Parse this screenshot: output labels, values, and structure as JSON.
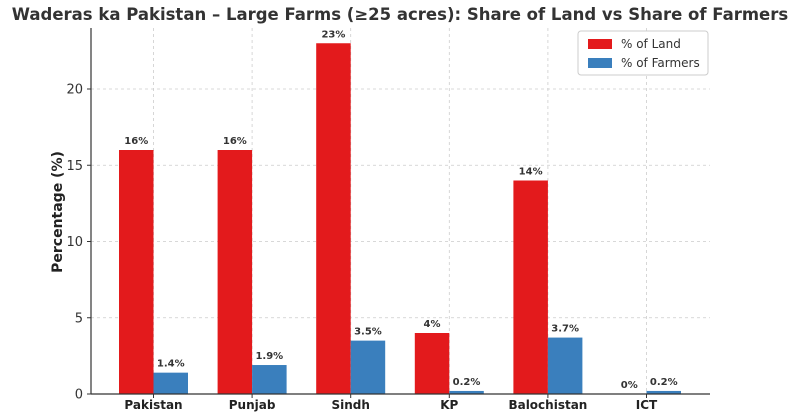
{
  "chart_data": {
    "type": "bar",
    "title": "Waderas ka Pakistan – Large Farms (≥25 acres): Share of Land vs Share of Farmers",
    "xlabel": "",
    "ylabel": "Percentage (%)",
    "ylim": [
      0,
      24
    ],
    "yticks": [
      0,
      5,
      10,
      15,
      20
    ],
    "categories": [
      "Pakistan",
      "Punjab",
      "Sindh",
      "KP",
      "Balochistan",
      "ICT"
    ],
    "series": [
      {
        "name": "% of Land",
        "color": "#e31a1c",
        "values": [
          16,
          16,
          23,
          4,
          14,
          0
        ],
        "labels": [
          "16%",
          "16%",
          "23%",
          "4%",
          "14%",
          "0%"
        ]
      },
      {
        "name": "% of Farmers",
        "color": "#3a7fbd",
        "values": [
          1.4,
          1.9,
          3.5,
          0.2,
          3.7,
          0.2
        ],
        "labels": [
          "1.4%",
          "1.9%",
          "3.5%",
          "0.2%",
          "3.7%",
          "0.2%"
        ]
      }
    ],
    "grid": true,
    "legend_position": "top-right"
  }
}
